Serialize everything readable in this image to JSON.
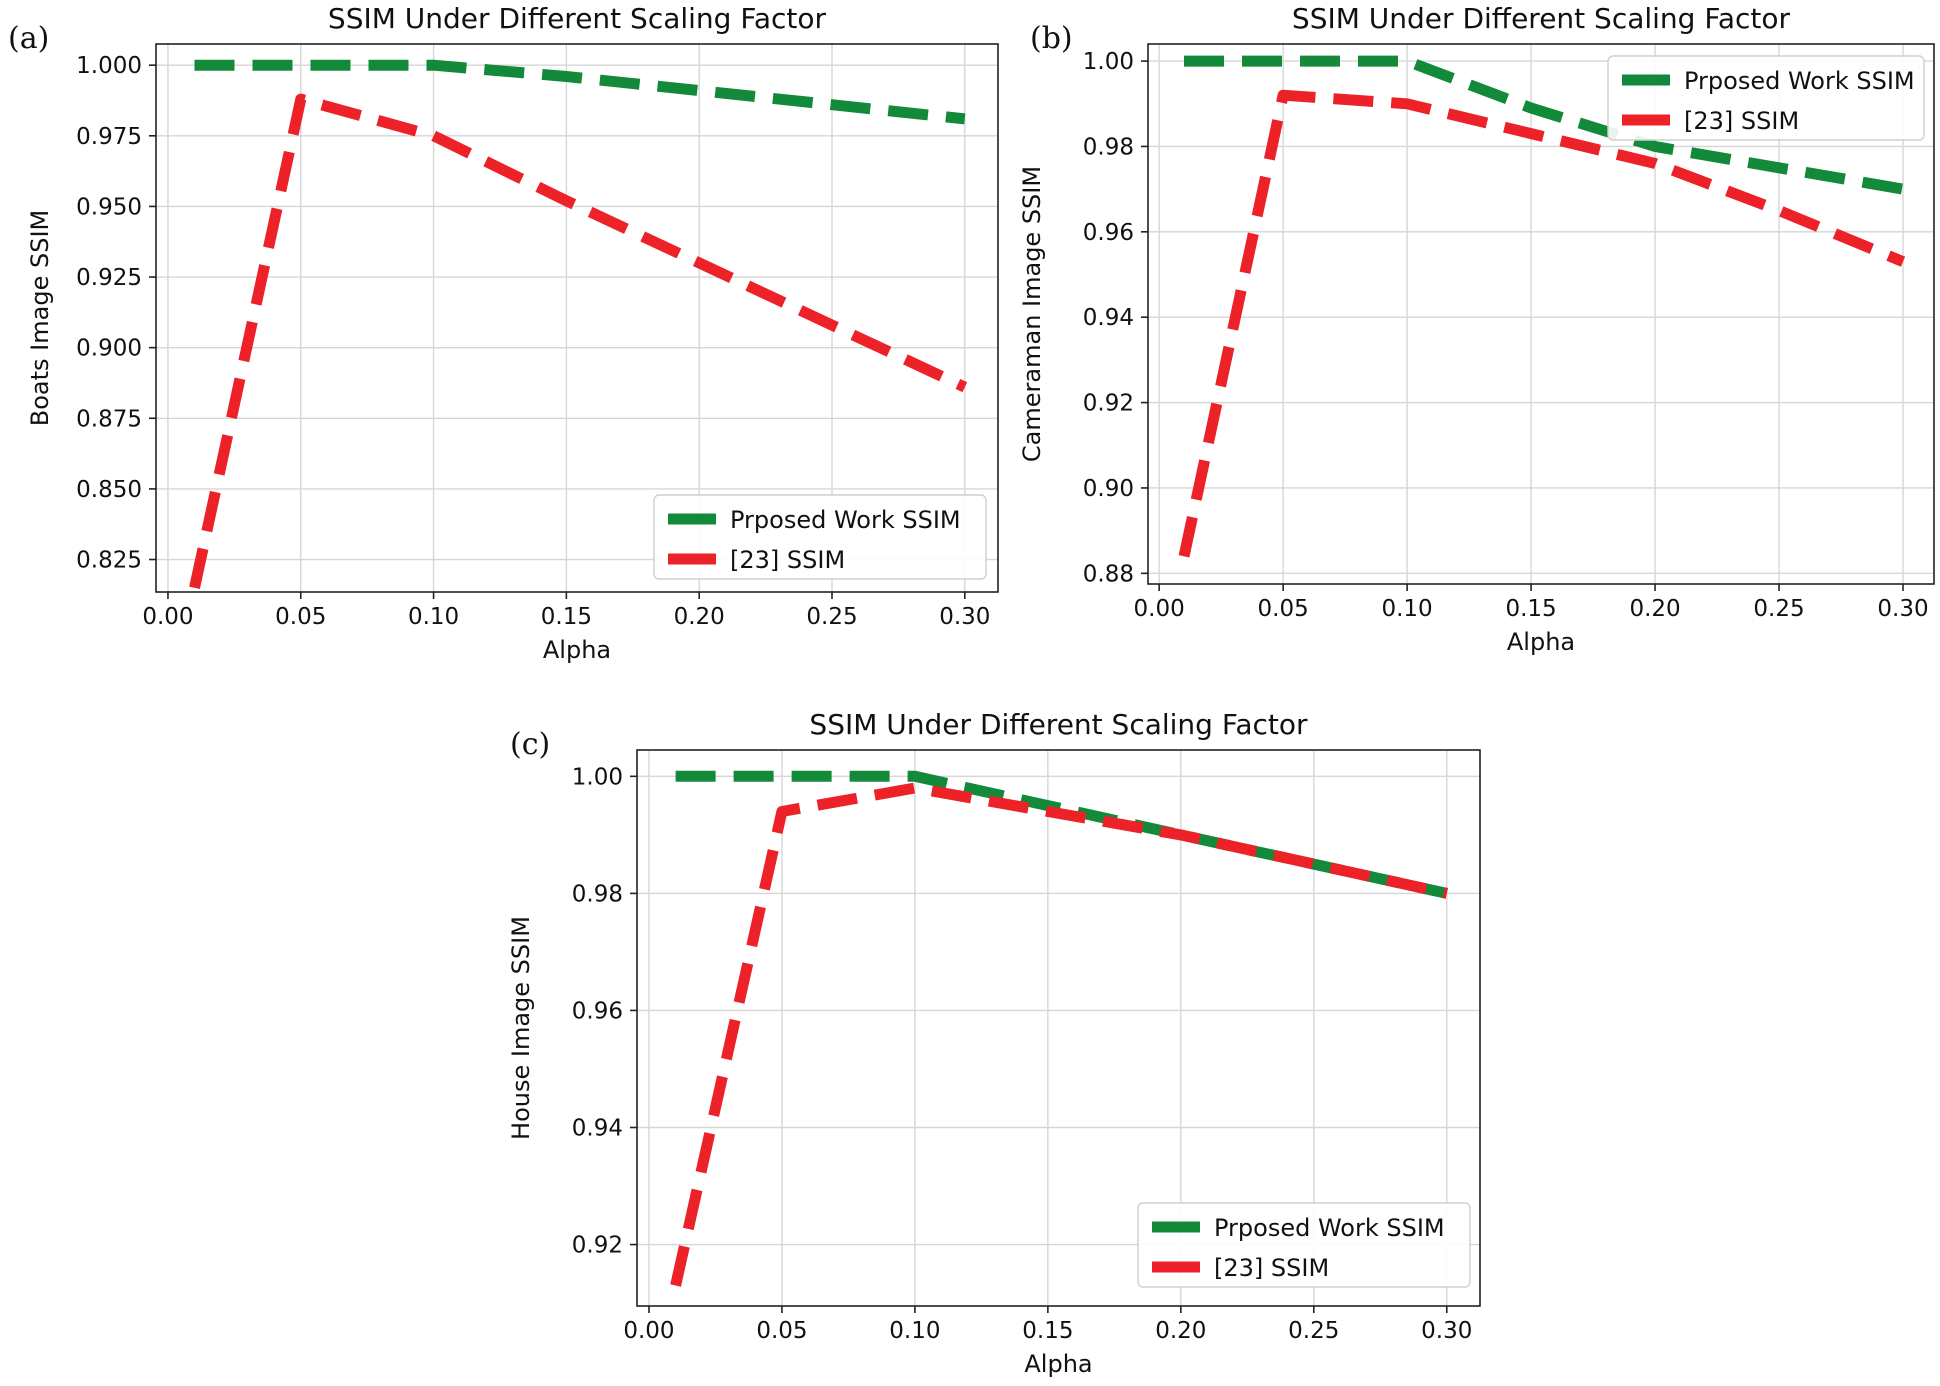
{
  "chart_data": [
    {
      "type": "line",
      "panel_label": "(a)",
      "title": "SSIM Under Different Scaling Factor",
      "xlabel": "Alpha",
      "ylabel": "Boats Image SSIM",
      "xlim": [
        -0.0045,
        0.3125
      ],
      "ylim": [
        0.8135,
        1.0075
      ],
      "xticks": [
        0.0,
        0.05,
        0.1,
        0.15,
        0.2,
        0.25,
        0.3
      ],
      "xtick_labels": [
        "0.00",
        "0.05",
        "0.10",
        "0.15",
        "0.20",
        "0.25",
        "0.30"
      ],
      "yticks": [
        0.825,
        0.85,
        0.875,
        0.9,
        0.925,
        0.95,
        0.975,
        1.0
      ],
      "ytick_labels": [
        "0.825",
        "0.850",
        "0.875",
        "0.900",
        "0.925",
        "0.950",
        "0.975",
        "1.000"
      ],
      "grid": true,
      "legend_position": "lower-right",
      "series": [
        {
          "name": "Prposed Work SSIM",
          "color": "#138a3a",
          "x": [
            0.01,
            0.05,
            0.1,
            0.15,
            0.2,
            0.25,
            0.3
          ],
          "y": [
            1.0,
            1.0,
            1.0,
            0.996,
            0.991,
            0.986,
            0.981
          ]
        },
        {
          "name": "[23] SSIM",
          "color": "#ec2228",
          "x": [
            0.01,
            0.05,
            0.1,
            0.15,
            0.2,
            0.25,
            0.3
          ],
          "y": [
            0.815,
            0.988,
            0.975,
            0.952,
            0.93,
            0.908,
            0.886
          ]
        }
      ]
    },
    {
      "type": "line",
      "panel_label": "(b)",
      "title": "SSIM Under Different Scaling Factor",
      "xlabel": "Alpha",
      "ylabel": "Cameraman Image SSIM",
      "xlim": [
        -0.0045,
        0.3125
      ],
      "ylim": [
        0.8775,
        1.004
      ],
      "xticks": [
        0.0,
        0.05,
        0.1,
        0.15,
        0.2,
        0.25,
        0.3
      ],
      "xtick_labels": [
        "0.00",
        "0.05",
        "0.10",
        "0.15",
        "0.20",
        "0.25",
        "0.30"
      ],
      "yticks": [
        0.88,
        0.9,
        0.92,
        0.94,
        0.96,
        0.98,
        1.0
      ],
      "ytick_labels": [
        "0.88",
        "0.90",
        "0.92",
        "0.94",
        "0.96",
        "0.98",
        "1.00"
      ],
      "grid": true,
      "legend_position": "upper-right",
      "series": [
        {
          "name": "Prposed Work SSIM",
          "color": "#138a3a",
          "x": [
            0.01,
            0.05,
            0.1,
            0.15,
            0.2,
            0.25,
            0.3
          ],
          "y": [
            1.0,
            1.0,
            1.0,
            0.989,
            0.98,
            0.975,
            0.97
          ]
        },
        {
          "name": "[23] SSIM",
          "color": "#ec2228",
          "x": [
            0.01,
            0.05,
            0.1,
            0.15,
            0.2,
            0.25,
            0.3
          ],
          "y": [
            0.884,
            0.992,
            0.99,
            0.983,
            0.976,
            0.965,
            0.953
          ]
        }
      ]
    },
    {
      "type": "line",
      "panel_label": "(c)",
      "title": "SSIM Under Different Scaling Factor",
      "xlabel": "Alpha",
      "ylabel": "House Image SSIM",
      "xlim": [
        -0.0045,
        0.3125
      ],
      "ylim": [
        0.9095,
        1.0045
      ],
      "xticks": [
        0.0,
        0.05,
        0.1,
        0.15,
        0.2,
        0.25,
        0.3
      ],
      "xtick_labels": [
        "0.00",
        "0.05",
        "0.10",
        "0.15",
        "0.20",
        "0.25",
        "0.30"
      ],
      "yticks": [
        0.92,
        0.94,
        0.96,
        0.98,
        1.0
      ],
      "ytick_labels": [
        "0.92",
        "0.94",
        "0.96",
        "0.98",
        "1.00"
      ],
      "grid": true,
      "legend_position": "lower-right",
      "series": [
        {
          "name": "Prposed Work SSIM",
          "color": "#138a3a",
          "x": [
            0.01,
            0.05,
            0.1,
            0.15,
            0.2,
            0.25,
            0.3
          ],
          "y": [
            1.0,
            1.0,
            1.0,
            0.995,
            0.99,
            0.985,
            0.98
          ]
        },
        {
          "name": "[23] SSIM",
          "color": "#ec2228",
          "x": [
            0.01,
            0.05,
            0.1,
            0.15,
            0.2,
            0.25,
            0.3
          ],
          "y": [
            0.913,
            0.994,
            0.998,
            0.994,
            0.99,
            0.985,
            0.98
          ]
        }
      ]
    }
  ]
}
